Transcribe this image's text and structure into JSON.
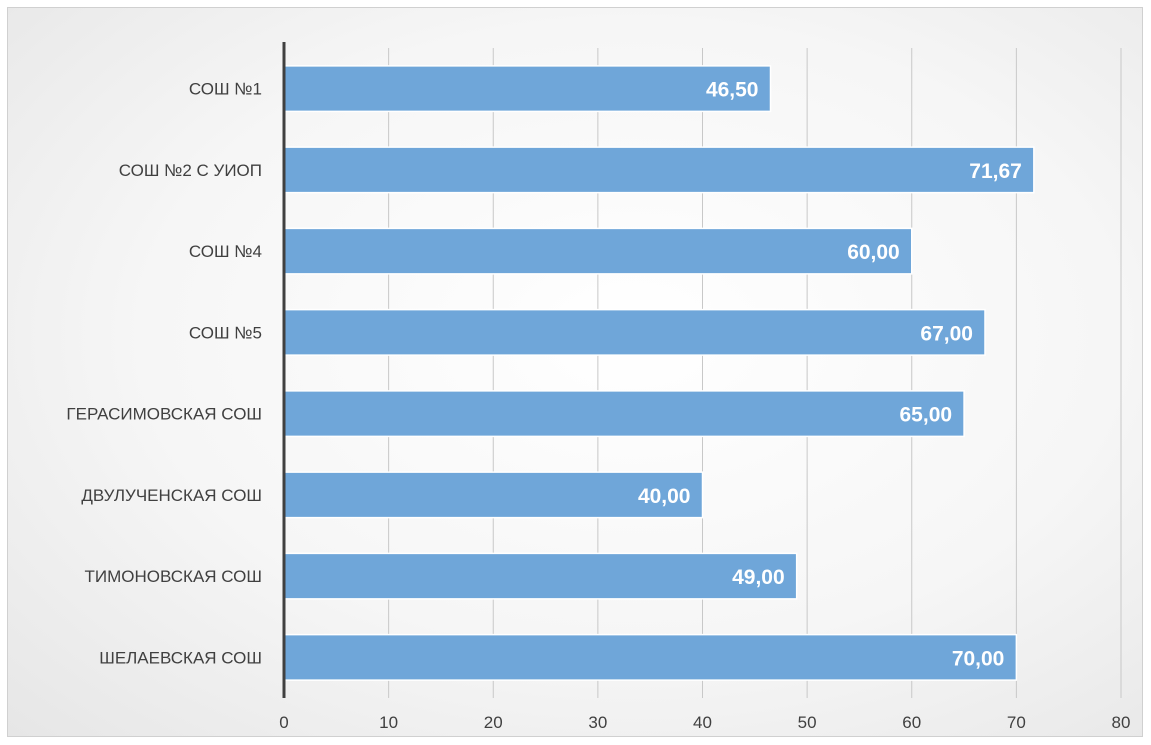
{
  "chart_data": {
    "type": "bar",
    "orientation": "horizontal",
    "title": "",
    "xlabel": "",
    "ylabel": "",
    "categories": [
      "СОШ №1",
      "СОШ №2 С УИОП",
      "СОШ №4",
      "СОШ №5",
      "ГЕРАСИМОВСКАЯ СОШ",
      "ДВУЛУЧЕНСКАЯ СОШ",
      "ТИМОНОВСКАЯ СОШ",
      "ШЕЛАЕВСКАЯ СОШ"
    ],
    "values": [
      46.5,
      71.67,
      60.0,
      67.0,
      65.0,
      40.0,
      49.0,
      70.0
    ],
    "data_labels": [
      "46,50",
      "71,67",
      "60,00",
      "67,00",
      "65,00",
      "40,00",
      "49,00",
      "70,00"
    ],
    "xlim": [
      0,
      80
    ],
    "xticks": [
      0,
      10,
      20,
      30,
      40,
      50,
      60,
      70,
      80
    ],
    "xtick_labels": [
      "0",
      "10",
      "20",
      "30",
      "40",
      "50",
      "60",
      "70",
      "80"
    ],
    "grid": "vertical",
    "legend": "none",
    "colors": {
      "bar": "#6fa6d9",
      "bar_edge": "#ffffff",
      "grid": "#c8c8c8",
      "axis": "#404040",
      "label": "#404040",
      "data_label": "#ffffff"
    }
  }
}
